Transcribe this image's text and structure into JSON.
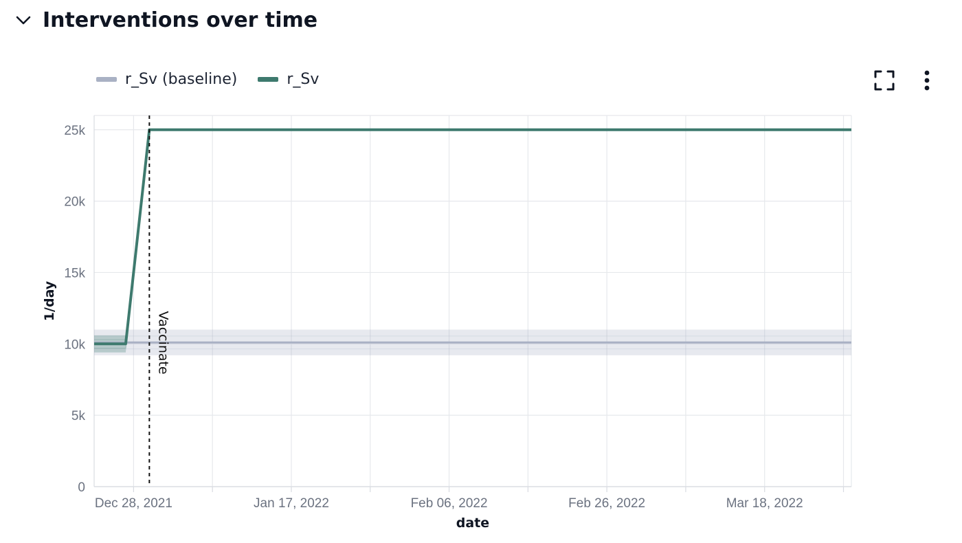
{
  "section": {
    "title": "Interventions over time",
    "collapse_icon": "chevron-down-icon"
  },
  "toolbar": {
    "fullscreen_icon": "fullscreen-icon",
    "menu_icon": "more-vertical-icon"
  },
  "chart_data": {
    "type": "line",
    "xlabel": "date",
    "ylabel": "1/day",
    "x_range": [
      "2021-12-23",
      "2022-03-29"
    ],
    "ylim": [
      0,
      26000
    ],
    "y_ticks": [
      0,
      5000,
      10000,
      15000,
      20000,
      25000
    ],
    "y_tick_labels": [
      "0",
      "5k",
      "10k",
      "15k",
      "20k",
      "25k"
    ],
    "x_tick_labels": [
      "Dec 28, 2021",
      "Jan 17, 2022",
      "Feb 06, 2022",
      "Feb 26, 2022",
      "Mar 18, 2022"
    ],
    "x_tick_dates": [
      "2021-12-28",
      "2022-01-17",
      "2022-02-06",
      "2022-02-26",
      "2022-03-18"
    ],
    "grid": true,
    "legend_position": "top-left",
    "series": [
      {
        "name": "r_Sv (baseline)",
        "color": "#a9b1c4",
        "x": [
          "2021-12-23",
          "2022-03-29"
        ],
        "y": [
          10100,
          10100
        ],
        "band_low": [
          9200,
          9200
        ],
        "band_high": [
          11000,
          11000
        ]
      },
      {
        "name": "r_Sv",
        "color": "#3e7a6e",
        "x": [
          "2021-12-23",
          "2021-12-27",
          "2021-12-30",
          "2022-03-29"
        ],
        "y": [
          10000,
          10000,
          25000,
          25000
        ],
        "band_low": [
          9400,
          9400,
          25000,
          25000
        ],
        "band_high": [
          10600,
          10600,
          25000,
          25000
        ]
      }
    ],
    "annotations": [
      {
        "label": "Vaccinate",
        "x": "2021-12-30",
        "style": "dashed-vertical"
      }
    ]
  }
}
